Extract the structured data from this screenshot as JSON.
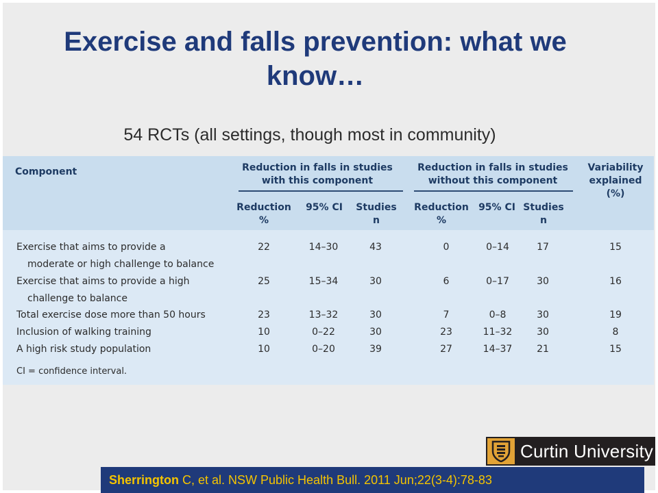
{
  "slide": {
    "title": "Exercise and falls prevention: what we know…",
    "subtitle": "54 RCTs (all settings, though most in community)"
  },
  "table": {
    "component_header": "Component",
    "group_with": "Reduction in falls in studies with this component",
    "group_without": "Reduction in falls in studies without this component",
    "variability_header": "Variability explained (%)",
    "sub_reduction": "Reduction %",
    "sub_ci": "95% CI",
    "sub_studies": "Studies n",
    "rows": [
      {
        "line1": "Exercise that aims to provide a",
        "line2": "moderate or high challenge to balance",
        "with_red": "22",
        "with_ci": "14–30",
        "with_n": "43",
        "without_red": "0",
        "without_ci": "0–14",
        "without_n": "17",
        "var": "15"
      },
      {
        "line1": "Exercise that aims to provide a high",
        "line2": "challenge to balance",
        "with_red": "25",
        "with_ci": "15–34",
        "with_n": "30",
        "without_red": "6",
        "without_ci": "0–17",
        "without_n": "30",
        "var": "16"
      },
      {
        "line1": "Total exercise dose more than 50 hours",
        "line2": "",
        "with_red": "23",
        "with_ci": "13–32",
        "with_n": "30",
        "without_red": "7",
        "without_ci": "0–8",
        "without_n": "30",
        "var": "19"
      },
      {
        "line1": "Inclusion of walking training",
        "line2": "",
        "with_red": "10",
        "with_ci": "0–22",
        "with_n": "30",
        "without_red": "23",
        "without_ci": "11–32",
        "without_n": "30",
        "var": "8"
      },
      {
        "line1": "A high risk study population",
        "line2": "",
        "with_red": "10",
        "with_ci": "0–20",
        "with_n": "39",
        "without_red": "27",
        "without_ci": "14–37",
        "without_n": "21",
        "var": "15"
      }
    ],
    "footnote": "CI = confidence interval."
  },
  "logo": {
    "text": "Curtin University"
  },
  "citation": {
    "author": "Sherrington",
    "rest": " C, et al.  NSW Public Health Bull. 2011 Jun;22(3-4):78-83"
  },
  "colors": {
    "title": "#1f3a7a",
    "citation_bg": "#1f3a7a",
    "citation_text": "#f5c400",
    "table_bg": "#dce9f5",
    "logo_gold": "#e2a336"
  }
}
